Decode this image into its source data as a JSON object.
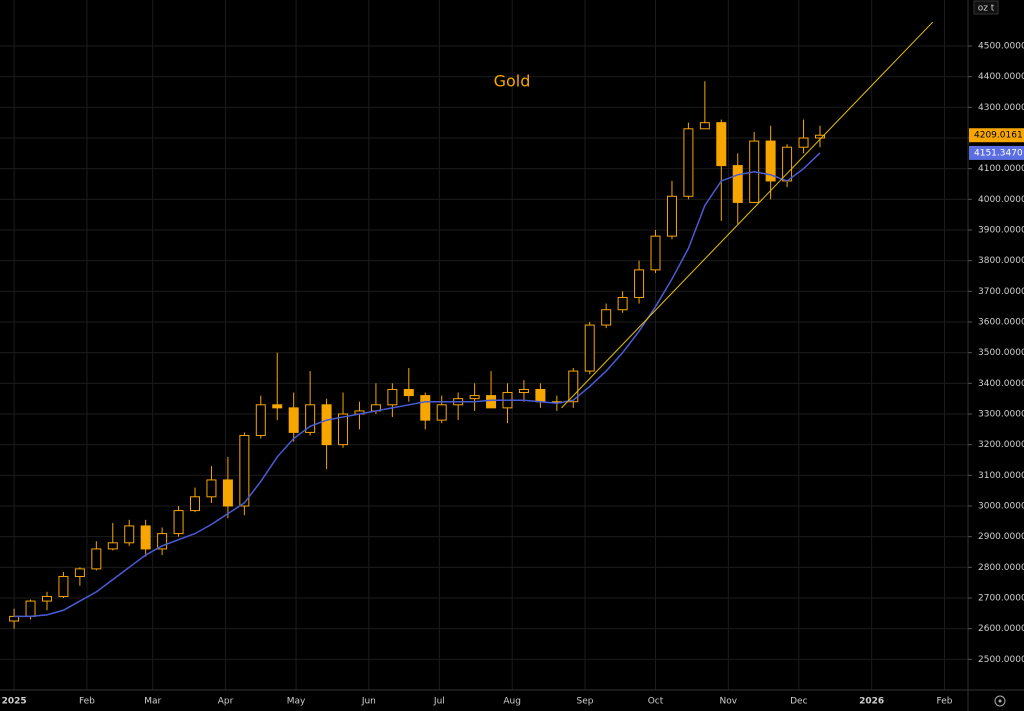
{
  "chart_data": {
    "type": "candlestick",
    "title": "Gold",
    "unit_label": "oz t",
    "color": "#f7a600",
    "grid": true,
    "x": [
      0,
      7,
      14,
      21,
      28,
      35,
      42,
      49,
      56,
      63,
      70,
      77,
      84,
      91,
      98,
      105,
      112,
      119,
      126,
      133,
      140,
      147,
      154,
      161,
      168,
      175,
      182,
      189,
      196,
      203,
      210,
      217,
      224,
      231,
      238,
      245,
      252,
      259,
      266,
      273,
      280,
      287,
      294,
      301,
      308,
      315,
      322,
      329,
      336,
      343
    ],
    "open": [
      2625,
      2640,
      2690,
      2705,
      2770,
      2795,
      2860,
      2880,
      2935,
      2860,
      2910,
      2985,
      3030,
      3085,
      3000,
      3230,
      3330,
      3320,
      3240,
      3330,
      3200,
      3300,
      3310,
      3330,
      3380,
      3360,
      3280,
      3330,
      3350,
      3360,
      3320,
      3370,
      3380,
      3340,
      3340,
      3440,
      3590,
      3640,
      3680,
      3770,
      3880,
      4010,
      4230,
      4250,
      4110,
      3990,
      4190,
      4060,
      4170,
      4200
    ],
    "high": [
      2665,
      2695,
      2720,
      2785,
      2800,
      2885,
      2945,
      2955,
      2955,
      2930,
      3000,
      3060,
      3130,
      3160,
      3240,
      3360,
      3500,
      3370,
      3440,
      3350,
      3370,
      3340,
      3400,
      3400,
      3450,
      3370,
      3360,
      3370,
      3400,
      3440,
      3400,
      3410,
      3400,
      3360,
      3450,
      3600,
      3660,
      3700,
      3800,
      3900,
      4060,
      4250,
      4385,
      4260,
      4150,
      4220,
      4240,
      4180,
      4260,
      4240
    ],
    "low": [
      2600,
      2630,
      2660,
      2700,
      2740,
      2790,
      2855,
      2870,
      2835,
      2840,
      2900,
      2980,
      3010,
      2960,
      2970,
      3220,
      3280,
      3210,
      3230,
      3120,
      3190,
      3250,
      3300,
      3290,
      3340,
      3250,
      3270,
      3280,
      3310,
      3320,
      3270,
      3340,
      3320,
      3310,
      3320,
      3430,
      3580,
      3630,
      3660,
      3760,
      3870,
      4000,
      4230,
      3930,
      3920,
      3990,
      4000,
      4040,
      4150,
      4170
    ],
    "close": [
      2640,
      2690,
      2705,
      2770,
      2795,
      2860,
      2880,
      2935,
      2860,
      2910,
      2985,
      3030,
      3085,
      3000,
      3230,
      3330,
      3320,
      3240,
      3330,
      3200,
      3300,
      3310,
      3330,
      3380,
      3360,
      3280,
      3330,
      3350,
      3360,
      3320,
      3370,
      3380,
      3340,
      3340,
      3440,
      3590,
      3640,
      3680,
      3770,
      3880,
      4010,
      4230,
      4250,
      4110,
      3990,
      4190,
      4060,
      4170,
      4200,
      4209.0161
    ],
    "ma": {
      "color": "#4a5bd6",
      "values": [
        2640,
        2640,
        2645,
        2660,
        2690,
        2720,
        2760,
        2800,
        2840,
        2870,
        2890,
        2910,
        2940,
        2975,
        3010,
        3080,
        3160,
        3220,
        3260,
        3280,
        3290,
        3300,
        3310,
        3320,
        3330,
        3340,
        3340,
        3340,
        3340,
        3345,
        3345,
        3345,
        3340,
        3335,
        3345,
        3390,
        3440,
        3500,
        3570,
        3650,
        3740,
        3840,
        3980,
        4060,
        4080,
        4090,
        4080,
        4060,
        4100,
        4151.347
      ]
    },
    "trendline": {
      "color": "#e6c200",
      "x": [
        233,
        391
      ],
      "y": [
        3320,
        4578
      ]
    },
    "price_tags": [
      {
        "value": 4209.0161,
        "label": "4209.0161",
        "color": "#f7a600"
      },
      {
        "value": 4151.347,
        "label": "4151.3470",
        "color": "#5b6ee1"
      }
    ],
    "xlim": [
      -6,
      406
    ],
    "ylim": [
      2400,
      4650
    ],
    "xticks": [
      {
        "value": 0,
        "label": "2025"
      },
      {
        "value": 31,
        "label": "Feb"
      },
      {
        "value": 59,
        "label": "Mar"
      },
      {
        "value": 90,
        "label": "Apr"
      },
      {
        "value": 120,
        "label": "May"
      },
      {
        "value": 151,
        "label": "Jun"
      },
      {
        "value": 181,
        "label": "Jul"
      },
      {
        "value": 212,
        "label": "Aug"
      },
      {
        "value": 243,
        "label": "Sep"
      },
      {
        "value": 273,
        "label": "Oct"
      },
      {
        "value": 304,
        "label": "Nov"
      },
      {
        "value": 334,
        "label": "Dec"
      },
      {
        "value": 365,
        "label": "2026"
      },
      {
        "value": 396,
        "label": "Feb"
      }
    ],
    "yticks": [
      {
        "value": 2500,
        "label": "2500.0000"
      },
      {
        "value": 2600,
        "label": "2600.0000"
      },
      {
        "value": 2700,
        "label": "2700.0000"
      },
      {
        "value": 2800,
        "label": "2800.0000"
      },
      {
        "value": 2900,
        "label": "2900.0000"
      },
      {
        "value": 3000,
        "label": "3000.0000"
      },
      {
        "value": 3100,
        "label": "3100.0000"
      },
      {
        "value": 3200,
        "label": "3200.0000"
      },
      {
        "value": 3300,
        "label": "3300.0000"
      },
      {
        "value": 3400,
        "label": "3400.0000"
      },
      {
        "value": 3500,
        "label": "3500.0000"
      },
      {
        "value": 3600,
        "label": "3600.0000"
      },
      {
        "value": 3700,
        "label": "3700.0000"
      },
      {
        "value": 3800,
        "label": "3800.0000"
      },
      {
        "value": 3900,
        "label": "3900.0000"
      },
      {
        "value": 4000,
        "label": "4000.0000"
      },
      {
        "value": 4100,
        "label": "4100.0000"
      },
      {
        "value": 4200,
        "label": "4200.0000"
      },
      {
        "value": 4300,
        "label": "4300.0000"
      },
      {
        "value": 4400,
        "label": "4400.0000"
      },
      {
        "value": 4500,
        "label": "4500.0000"
      }
    ]
  }
}
